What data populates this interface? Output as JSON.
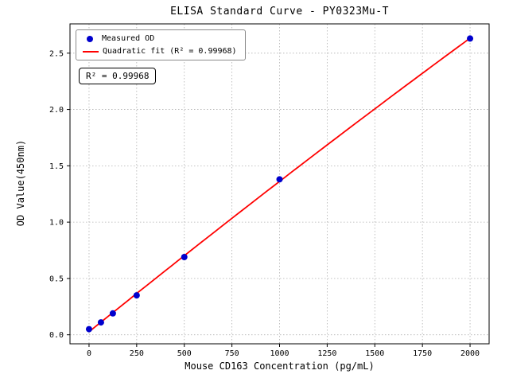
{
  "chart_data": {
    "type": "scatter",
    "title": "ELISA Standard Curve - PY0323Mu-T",
    "xlabel": "Mouse CD163 Concentration (pg/mL)",
    "ylabel": "OD Value(450nm)",
    "xlim": [
      -100,
      2100
    ],
    "ylim": [
      -0.08,
      2.76
    ],
    "grid": true,
    "legend_position": "upper left",
    "xticks": [
      {
        "v": 0,
        "label": "0"
      },
      {
        "v": 250,
        "label": "250"
      },
      {
        "v": 500,
        "label": "500"
      },
      {
        "v": 750,
        "label": "750"
      },
      {
        "v": 1000,
        "label": "1000"
      },
      {
        "v": 1250,
        "label": "1250"
      },
      {
        "v": 1500,
        "label": "1500"
      },
      {
        "v": 1750,
        "label": "1750"
      },
      {
        "v": 2000,
        "label": "2000"
      }
    ],
    "yticks": [
      {
        "v": 0.0,
        "label": "0.0"
      },
      {
        "v": 0.5,
        "label": "0.5"
      },
      {
        "v": 1.0,
        "label": "1.0"
      },
      {
        "v": 1.5,
        "label": "1.5"
      },
      {
        "v": 2.0,
        "label": "2.0"
      },
      {
        "v": 2.5,
        "label": "2.5"
      }
    ],
    "series": [
      {
        "name": "Measured OD",
        "kind": "scatter",
        "color": "#0000cd",
        "x": [
          0,
          62.5,
          125,
          250,
          500,
          1000,
          2000
        ],
        "y": [
          0.05,
          0.11,
          0.19,
          0.35,
          0.69,
          1.38,
          2.63
        ]
      },
      {
        "name": "Quadratic fit (R² = 0.99968)",
        "kind": "quadratic-fit",
        "color": "#ff0000",
        "fit_of": 0
      }
    ],
    "annotation": "R² = 0.99968",
    "r_squared": "0.99968"
  }
}
